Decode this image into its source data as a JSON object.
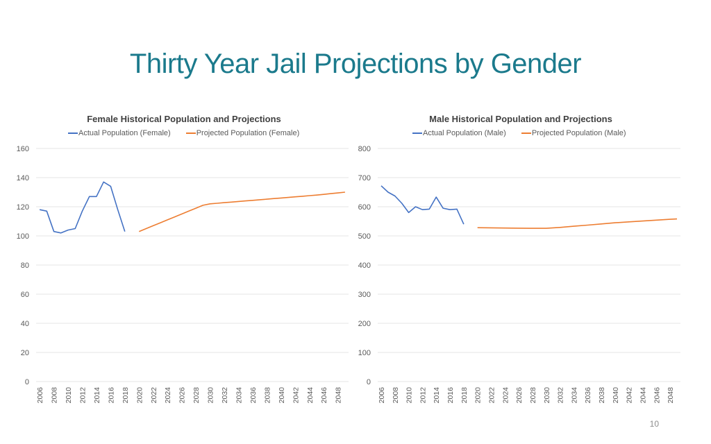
{
  "slide": {
    "title": "Thirty Year Jail Projections by Gender",
    "page_number": "10"
  },
  "colors": {
    "title": "#1b7a8c",
    "actual": "#4472c4",
    "projected": "#ed7d31",
    "grid": "#e6e6e6",
    "text": "#595959"
  },
  "chart_data": [
    {
      "type": "line",
      "title": "Female Historical Population and Projections",
      "xlabel": "",
      "ylabel": "",
      "ylim": [
        0,
        160
      ],
      "yticks": [
        "0",
        "20",
        "40",
        "60",
        "80",
        "100",
        "120",
        "140",
        "160"
      ],
      "categories": [
        "2006",
        "2007",
        "2008",
        "2009",
        "2010",
        "2011",
        "2012",
        "2013",
        "2014",
        "2015",
        "2016",
        "2017",
        "2018",
        "2019",
        "2020",
        "2021",
        "2022",
        "2023",
        "2024",
        "2025",
        "2026",
        "2027",
        "2028",
        "2029",
        "2030",
        "2031",
        "2032",
        "2033",
        "2034",
        "2035",
        "2036",
        "2037",
        "2038",
        "2039",
        "2040",
        "2041",
        "2042",
        "2043",
        "2044",
        "2045",
        "2046",
        "2047",
        "2048",
        "2049"
      ],
      "xtick_labels": [
        "2006",
        "2008",
        "2010",
        "2012",
        "2014",
        "2016",
        "2018",
        "2020",
        "2022",
        "2024",
        "2026",
        "2028",
        "2030",
        "2032",
        "2034",
        "2036",
        "2038",
        "2040",
        "2042",
        "2044",
        "2046",
        "2048"
      ],
      "legend": [
        "Actual Population (Female)",
        "Projected Population (Female)"
      ],
      "legend_position": "top",
      "grid": true,
      "series": [
        {
          "name": "Actual Population (Female)",
          "color": "#4472c4",
          "points": [
            [
              2006,
              118
            ],
            [
              2007,
              117
            ],
            [
              2008,
              103
            ],
            [
              2009,
              102
            ],
            [
              2010,
              104
            ],
            [
              2011,
              105
            ],
            [
              2012,
              117
            ],
            [
              2013,
              127
            ],
            [
              2014,
              127
            ],
            [
              2015,
              137
            ],
            [
              2016,
              134
            ],
            [
              2017,
              118
            ],
            [
              2018,
              103
            ]
          ]
        },
        {
          "name": "Projected Population (Female)",
          "color": "#ed7d31",
          "points": [
            [
              2020,
              103
            ],
            [
              2021,
              105
            ],
            [
              2022,
              107
            ],
            [
              2023,
              109
            ],
            [
              2024,
              111
            ],
            [
              2025,
              113
            ],
            [
              2026,
              115
            ],
            [
              2027,
              117
            ],
            [
              2028,
              119
            ],
            [
              2029,
              121
            ],
            [
              2030,
              122
            ],
            [
              2031,
              122.4
            ],
            [
              2032,
              122.8
            ],
            [
              2033,
              123.2
            ],
            [
              2034,
              123.6
            ],
            [
              2035,
              124
            ],
            [
              2036,
              124.4
            ],
            [
              2037,
              124.8
            ],
            [
              2038,
              125.2
            ],
            [
              2039,
              125.6
            ],
            [
              2040,
              126
            ],
            [
              2041,
              126.4
            ],
            [
              2042,
              126.8
            ],
            [
              2043,
              127.2
            ],
            [
              2044,
              127.6
            ],
            [
              2045,
              128
            ],
            [
              2046,
              128.5
            ],
            [
              2047,
              129
            ],
            [
              2048,
              129.5
            ],
            [
              2049,
              130
            ]
          ]
        }
      ]
    },
    {
      "type": "line",
      "title": "Male Historical Population and Projections",
      "xlabel": "",
      "ylabel": "",
      "ylim": [
        0,
        800
      ],
      "yticks": [
        "0",
        "100",
        "200",
        "300",
        "400",
        "500",
        "600",
        "700",
        "800"
      ],
      "categories": [
        "2006",
        "2007",
        "2008",
        "2009",
        "2010",
        "2011",
        "2012",
        "2013",
        "2014",
        "2015",
        "2016",
        "2017",
        "2018",
        "2019",
        "2020",
        "2021",
        "2022",
        "2023",
        "2024",
        "2025",
        "2026",
        "2027",
        "2028",
        "2029",
        "2030",
        "2031",
        "2032",
        "2033",
        "2034",
        "2035",
        "2036",
        "2037",
        "2038",
        "2039",
        "2040",
        "2041",
        "2042",
        "2043",
        "2044",
        "2045",
        "2046",
        "2047",
        "2048",
        "2049"
      ],
      "xtick_labels": [
        "2006",
        "2008",
        "2010",
        "2012",
        "2014",
        "2016",
        "2018",
        "2020",
        "2022",
        "2024",
        "2026",
        "2028",
        "2030",
        "2032",
        "2034",
        "2036",
        "2038",
        "2040",
        "2042",
        "2044",
        "2046",
        "2048"
      ],
      "legend": [
        "Actual Population (Male)",
        "Projected Population (Male)"
      ],
      "legend_position": "top",
      "grid": true,
      "series": [
        {
          "name": "Actual Population (Male)",
          "color": "#4472c4",
          "points": [
            [
              2006,
              672
            ],
            [
              2007,
              650
            ],
            [
              2008,
              637
            ],
            [
              2009,
              612
            ],
            [
              2010,
              580
            ],
            [
              2011,
              600
            ],
            [
              2012,
              590
            ],
            [
              2013,
              592
            ],
            [
              2014,
              633
            ],
            [
              2015,
              595
            ],
            [
              2016,
              590
            ],
            [
              2017,
              592
            ],
            [
              2018,
              540
            ]
          ]
        },
        {
          "name": "Projected Population (Male)",
          "color": "#ed7d31",
          "points": [
            [
              2020,
              528
            ],
            [
              2022,
              527.5
            ],
            [
              2024,
              527
            ],
            [
              2026,
              526.5
            ],
            [
              2028,
              526
            ],
            [
              2030,
              526
            ],
            [
              2032,
              529
            ],
            [
              2034,
              533
            ],
            [
              2036,
              537
            ],
            [
              2038,
              541
            ],
            [
              2040,
              545
            ],
            [
              2042,
              548
            ],
            [
              2044,
              551
            ],
            [
              2046,
              554
            ],
            [
              2048,
              557
            ],
            [
              2049,
              558
            ]
          ]
        }
      ]
    }
  ]
}
